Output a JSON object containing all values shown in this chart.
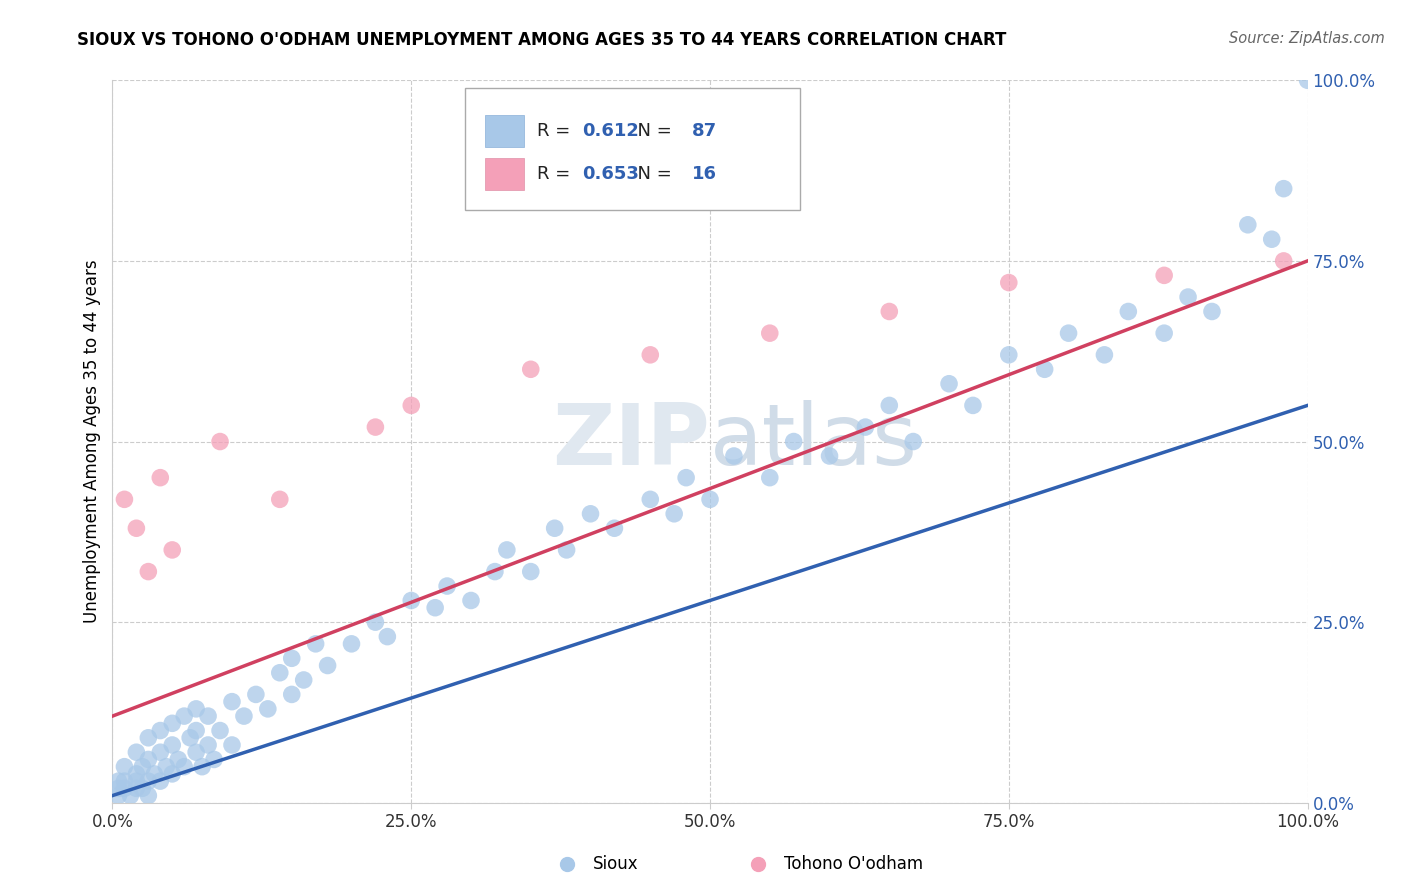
{
  "title": "SIOUX VS TOHONO O'ODHAM UNEMPLOYMENT AMONG AGES 35 TO 44 YEARS CORRELATION CHART",
  "source": "Source: ZipAtlas.com",
  "ylabel": "Unemployment Among Ages 35 to 44 years",
  "sioux_R": 0.612,
  "sioux_N": 87,
  "tohono_R": 0.653,
  "tohono_N": 16,
  "sioux_color": "#a8c8e8",
  "sioux_line_color": "#3060b0",
  "tohono_color": "#f4a0b8",
  "tohono_line_color": "#d04060",
  "watermark_zip": "ZIP",
  "watermark_atlas": "atlas",
  "xlim": [
    0.0,
    1.0
  ],
  "ylim": [
    0.0,
    1.0
  ],
  "tick_vals": [
    0.0,
    0.25,
    0.5,
    0.75,
    1.0
  ],
  "tick_labels": [
    "0.0%",
    "25.0%",
    "50.0%",
    "75.0%",
    "100.0%"
  ],
  "sioux_x": [
    0.005,
    0.005,
    0.01,
    0.01,
    0.015,
    0.02,
    0.02,
    0.02,
    0.025,
    0.025,
    0.03,
    0.03,
    0.03,
    0.035,
    0.04,
    0.04,
    0.045,
    0.05,
    0.05,
    0.055,
    0.06,
    0.065,
    0.07,
    0.07,
    0.075,
    0.08,
    0.08,
    0.085,
    0.09,
    0.1,
    0.1,
    0.11,
    0.12,
    0.13,
    0.14,
    0.15,
    0.15,
    0.16,
    0.17,
    0.18,
    0.2,
    0.22,
    0.23,
    0.25,
    0.27,
    0.28,
    0.3,
    0.32,
    0.33,
    0.35,
    0.37,
    0.38,
    0.4,
    0.42,
    0.45,
    0.47,
    0.48,
    0.5,
    0.52,
    0.55,
    0.57,
    0.6,
    0.63,
    0.65,
    0.67,
    0.7,
    0.72,
    0.75,
    0.78,
    0.8,
    0.83,
    0.85,
    0.88,
    0.9,
    0.92,
    0.95,
    0.97,
    0.98,
    1.0,
    0.005,
    0.01,
    0.02,
    0.03,
    0.04,
    0.05,
    0.06,
    0.07
  ],
  "sioux_y": [
    0.01,
    0.02,
    0.02,
    0.03,
    0.01,
    0.02,
    0.03,
    0.04,
    0.02,
    0.05,
    0.01,
    0.03,
    0.06,
    0.04,
    0.03,
    0.07,
    0.05,
    0.04,
    0.08,
    0.06,
    0.05,
    0.09,
    0.07,
    0.1,
    0.05,
    0.08,
    0.12,
    0.06,
    0.1,
    0.08,
    0.14,
    0.12,
    0.15,
    0.13,
    0.18,
    0.15,
    0.2,
    0.17,
    0.22,
    0.19,
    0.22,
    0.25,
    0.23,
    0.28,
    0.27,
    0.3,
    0.28,
    0.32,
    0.35,
    0.32,
    0.38,
    0.35,
    0.4,
    0.38,
    0.42,
    0.4,
    0.45,
    0.42,
    0.48,
    0.45,
    0.5,
    0.48,
    0.52,
    0.55,
    0.5,
    0.58,
    0.55,
    0.62,
    0.6,
    0.65,
    0.62,
    0.68,
    0.65,
    0.7,
    0.68,
    0.8,
    0.78,
    0.85,
    1.0,
    0.03,
    0.05,
    0.07,
    0.09,
    0.1,
    0.11,
    0.12,
    0.13
  ],
  "tohono_x": [
    0.01,
    0.02,
    0.03,
    0.04,
    0.05,
    0.09,
    0.14,
    0.22,
    0.25,
    0.35,
    0.45,
    0.55,
    0.65,
    0.75,
    0.88,
    0.98
  ],
  "tohono_y": [
    0.42,
    0.38,
    0.32,
    0.45,
    0.35,
    0.5,
    0.42,
    0.52,
    0.55,
    0.6,
    0.62,
    0.65,
    0.68,
    0.72,
    0.73,
    0.75
  ]
}
